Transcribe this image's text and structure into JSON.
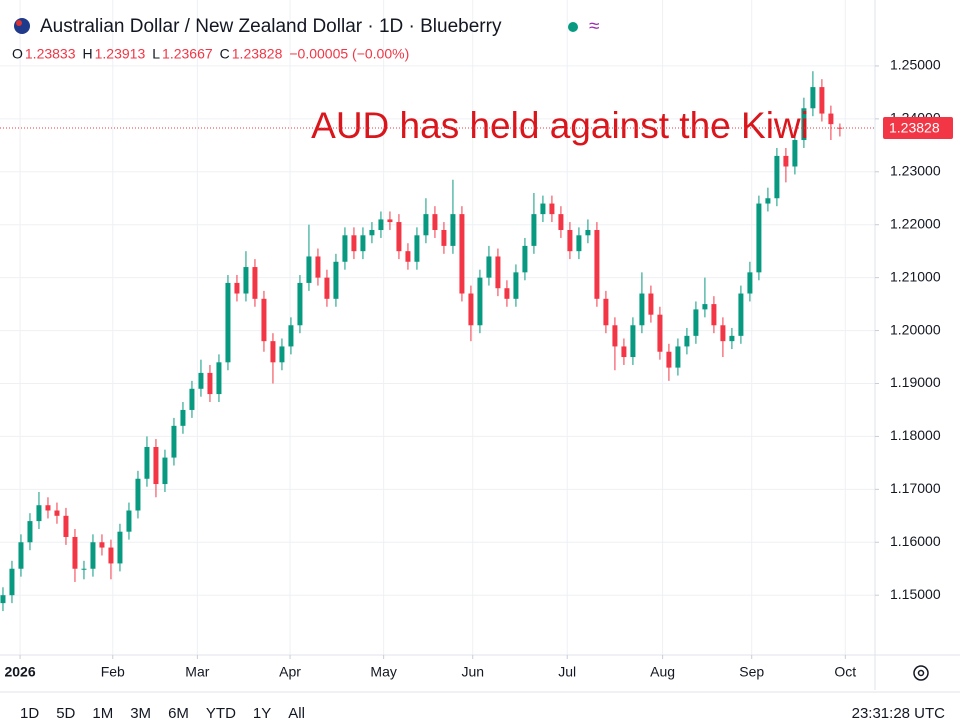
{
  "chart_data": {
    "type": "candlestick",
    "title": "Australian Dollar / New Zealand Dollar · 1D · Blueberry",
    "ohlc_header": [
      {
        "label": "O",
        "value": 1.23833
      },
      {
        "label": "H",
        "value": 1.23913
      },
      {
        "label": "L",
        "value": 1.23667
      },
      {
        "label": "C",
        "value": 1.23828
      }
    ],
    "change": "−0.00005 (−0.00%)",
    "annotation": "AUD has held against the Kiwi",
    "open": [
      1.1485,
      1.15,
      1.155,
      1.16,
      1.164,
      1.167,
      1.166,
      1.165,
      1.161,
      1.155,
      1.155,
      1.16,
      1.159,
      1.156,
      1.162,
      1.166,
      1.172,
      1.178,
      1.171,
      1.176,
      1.182,
      1.185,
      1.189,
      1.192,
      1.188,
      1.194,
      1.209,
      1.207,
      1.212,
      1.206,
      1.198,
      1.194,
      1.197,
      1.201,
      1.209,
      1.214,
      1.21,
      1.206,
      1.213,
      1.218,
      1.215,
      1.218,
      1.219,
      1.221,
      1.2205,
      1.215,
      1.213,
      1.218,
      1.222,
      1.219,
      1.216,
      1.222,
      1.207,
      1.201,
      1.21,
      1.214,
      1.208,
      1.206,
      1.211,
      1.216,
      1.222,
      1.224,
      1.222,
      1.219,
      1.215,
      1.218,
      1.219,
      1.206,
      1.201,
      1.197,
      1.195,
      1.201,
      1.207,
      1.203,
      1.196,
      1.193,
      1.197,
      1.199,
      1.204,
      1.205,
      1.201,
      1.198,
      1.199,
      1.207,
      1.211,
      1.224,
      1.225,
      1.233,
      1.231,
      1.236,
      1.242,
      1.246,
      1.241,
      1.23833
    ],
    "high": [
      1.1515,
      1.1565,
      1.1615,
      1.1655,
      1.1695,
      1.1685,
      1.1675,
      1.1665,
      1.1625,
      1.1565,
      1.1615,
      1.1615,
      1.1605,
      1.1635,
      1.1675,
      1.1735,
      1.18,
      1.1795,
      1.1775,
      1.1835,
      1.1865,
      1.1905,
      1.1945,
      1.1935,
      1.1955,
      1.2105,
      1.2105,
      1.215,
      1.2135,
      1.2075,
      1.1995,
      1.1985,
      1.2025,
      1.2105,
      1.22,
      1.2155,
      1.2115,
      1.2145,
      1.2195,
      1.2195,
      1.2195,
      1.2205,
      1.2225,
      1.2225,
      1.222,
      1.2165,
      1.2195,
      1.225,
      1.2235,
      1.2205,
      1.2285,
      1.2235,
      1.2085,
      1.2115,
      1.216,
      1.2155,
      1.2095,
      1.2125,
      1.2175,
      1.226,
      1.2255,
      1.2255,
      1.2235,
      1.2205,
      1.2195,
      1.221,
      1.2205,
      1.2075,
      1.2025,
      1.1985,
      1.2025,
      1.211,
      1.2085,
      1.2045,
      1.1975,
      1.1985,
      1.2005,
      1.2055,
      1.21,
      1.2065,
      1.2025,
      1.2005,
      1.2085,
      1.213,
      1.2255,
      1.227,
      1.2345,
      1.2345,
      1.2375,
      1.244,
      1.249,
      1.2475,
      1.2425,
      1.23913
    ],
    "low": [
      1.147,
      1.1485,
      1.1535,
      1.1585,
      1.1625,
      1.1645,
      1.1635,
      1.1595,
      1.1525,
      1.153,
      1.1535,
      1.1575,
      1.153,
      1.1545,
      1.1605,
      1.1645,
      1.1705,
      1.1685,
      1.1695,
      1.1745,
      1.1805,
      1.1835,
      1.1875,
      1.1865,
      1.1865,
      1.1925,
      1.2055,
      1.2055,
      1.2045,
      1.196,
      1.19,
      1.1925,
      1.1955,
      1.1995,
      1.2075,
      1.2085,
      1.2045,
      1.2045,
      1.2115,
      1.2135,
      1.2135,
      1.2165,
      1.2175,
      1.219,
      1.2135,
      1.2115,
      1.2115,
      1.2165,
      1.2175,
      1.2145,
      1.2145,
      1.2055,
      1.198,
      1.1995,
      1.2085,
      1.2065,
      1.2045,
      1.2045,
      1.2095,
      1.2145,
      1.2205,
      1.2205,
      1.2175,
      1.2135,
      1.2135,
      1.2165,
      1.2045,
      1.1995,
      1.1925,
      1.1935,
      1.1935,
      1.1995,
      1.2015,
      1.1945,
      1.1905,
      1.1915,
      1.1955,
      1.1975,
      1.2025,
      1.1995,
      1.195,
      1.1965,
      1.1975,
      1.2055,
      1.2095,
      1.2225,
      1.2235,
      1.228,
      1.2295,
      1.2345,
      1.2405,
      1.2395,
      1.236,
      1.23667
    ],
    "close": [
      1.15,
      1.155,
      1.16,
      1.164,
      1.167,
      1.166,
      1.165,
      1.161,
      1.155,
      1.155,
      1.16,
      1.159,
      1.156,
      1.162,
      1.166,
      1.172,
      1.178,
      1.171,
      1.176,
      1.182,
      1.185,
      1.189,
      1.192,
      1.188,
      1.194,
      1.209,
      1.207,
      1.212,
      1.206,
      1.198,
      1.194,
      1.197,
      1.201,
      1.209,
      1.214,
      1.21,
      1.206,
      1.213,
      1.218,
      1.215,
      1.218,
      1.219,
      1.221,
      1.2205,
      1.215,
      1.213,
      1.218,
      1.222,
      1.219,
      1.216,
      1.222,
      1.207,
      1.201,
      1.21,
      1.214,
      1.208,
      1.206,
      1.211,
      1.216,
      1.222,
      1.224,
      1.222,
      1.219,
      1.215,
      1.218,
      1.219,
      1.206,
      1.201,
      1.197,
      1.195,
      1.201,
      1.207,
      1.203,
      1.196,
      1.193,
      1.197,
      1.199,
      1.204,
      1.205,
      1.201,
      1.198,
      1.199,
      1.207,
      1.211,
      1.224,
      1.225,
      1.233,
      1.231,
      1.236,
      1.242,
      1.246,
      1.241,
      1.239,
      1.23828
    ],
    "up_color": "#089981",
    "down_color": "#f23645",
    "last_price_label": "1.23828",
    "xlim": [
      -0.33,
      96.9
    ],
    "xticks": [
      {
        "value": 1.9,
        "label": "2026"
      },
      {
        "value": 12.2,
        "label": "Feb"
      },
      {
        "value": 21.6,
        "label": "Mar"
      },
      {
        "value": 31.9,
        "label": "Apr"
      },
      {
        "value": 42.3,
        "label": "May"
      },
      {
        "value": 52.2,
        "label": "Jun"
      },
      {
        "value": 62.7,
        "label": "Jul"
      },
      {
        "value": 73.3,
        "label": "Aug"
      },
      {
        "value": 83.2,
        "label": "Sep"
      },
      {
        "value": 93.6,
        "label": "Oct"
      }
    ],
    "ylim": [
      1.1387,
      1.2549
    ],
    "yticks": [
      {
        "value": 1.15,
        "label": "1.15000"
      },
      {
        "value": 1.16,
        "label": "1.16000"
      },
      {
        "value": 1.17,
        "label": "1.17000"
      },
      {
        "value": 1.18,
        "label": "1.18000"
      },
      {
        "value": 1.19,
        "label": "1.19000"
      },
      {
        "value": 1.2,
        "label": "1.20000"
      },
      {
        "value": 1.21,
        "label": "1.21000"
      },
      {
        "value": 1.22,
        "label": "1.22000"
      },
      {
        "value": 1.23,
        "label": "1.23000"
      },
      {
        "value": 1.24,
        "label": "1.24000"
      },
      {
        "value": 1.25,
        "label": "1.25000"
      }
    ],
    "grid": true
  },
  "toolbar": {
    "ranges": [
      "1D",
      "5D",
      "1M",
      "3M",
      "6M",
      "YTD",
      "1Y",
      "All"
    ],
    "clock": "23:31:28 UTC"
  }
}
